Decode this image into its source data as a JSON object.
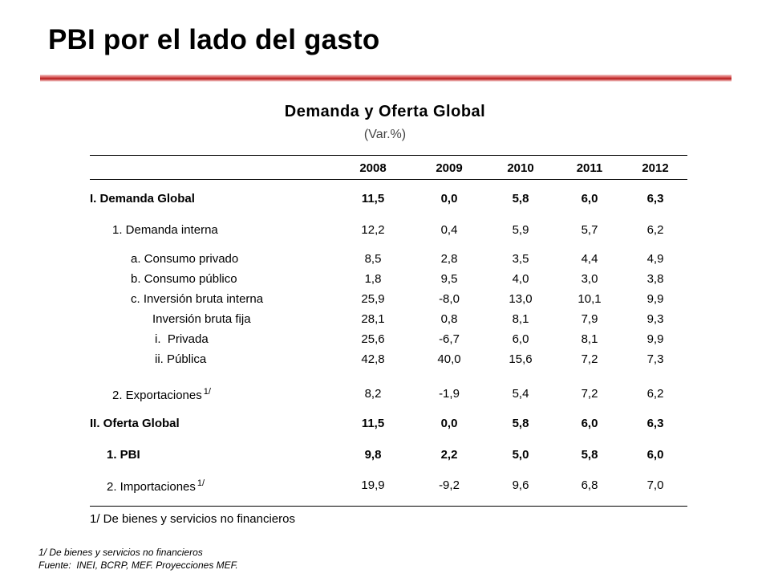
{
  "header": {
    "title": "PBI por el lado del gasto"
  },
  "table": {
    "title": "Demanda y Oferta Global",
    "subtitle": "(Var.%)",
    "years": [
      "2008",
      "2009",
      "2010",
      "2011",
      "2012"
    ],
    "rows": [
      {
        "label": "I. Demanda Global",
        "sup": "",
        "values": [
          "11,5",
          "0,0",
          "5,8",
          "6,0",
          "6,3"
        ]
      },
      {
        "label": "1. Demanda interna",
        "sup": "",
        "values": [
          "12,2",
          "0,4",
          "5,9",
          "5,7",
          "6,2"
        ]
      },
      {
        "label": "a. Consumo privado",
        "sup": "",
        "values": [
          "8,5",
          "2,8",
          "3,5",
          "4,4",
          "4,9"
        ]
      },
      {
        "label": "b. Consumo público",
        "sup": "",
        "values": [
          "1,8",
          "9,5",
          "4,0",
          "3,0",
          "3,8"
        ]
      },
      {
        "label": "c. Inversión bruta interna",
        "sup": "",
        "values": [
          "25,9",
          "-8,0",
          "13,0",
          "10,1",
          "9,9"
        ]
      },
      {
        "label": "Inversión bruta fija",
        "sup": "",
        "values": [
          "28,1",
          "0,8",
          "8,1",
          "7,9",
          "9,3"
        ]
      },
      {
        "label": "i.  Privada",
        "sup": "",
        "values": [
          "25,6",
          "-6,7",
          "6,0",
          "8,1",
          "9,9"
        ]
      },
      {
        "label": "ii. Pública",
        "sup": "",
        "values": [
          "42,8",
          "40,0",
          "15,6",
          "7,2",
          "7,3"
        ]
      },
      {
        "label": "2. Exportaciones",
        "sup": "1/",
        "values": [
          "8,2",
          "-1,9",
          "5,4",
          "7,2",
          "6,2"
        ]
      },
      {
        "label": "II. Oferta Global",
        "sup": "",
        "values": [
          "11,5",
          "0,0",
          "5,8",
          "6,0",
          "6,3"
        ]
      },
      {
        "label": "1. PBI",
        "sup": "",
        "values": [
          "9,8",
          "2,2",
          "5,0",
          "5,8",
          "6,0"
        ]
      },
      {
        "label": "2. Importaciones",
        "sup": "1/",
        "values": [
          "19,9",
          "-9,2",
          "9,6",
          "6,8",
          "7,0"
        ]
      }
    ],
    "footnote": "1/ De bienes y servicios no financieros"
  },
  "notes": {
    "line1": "1/ De bienes y servicios no financieros",
    "line2": "Fuente:  INEI, BCRP, MEF. Proyecciones MEF."
  }
}
